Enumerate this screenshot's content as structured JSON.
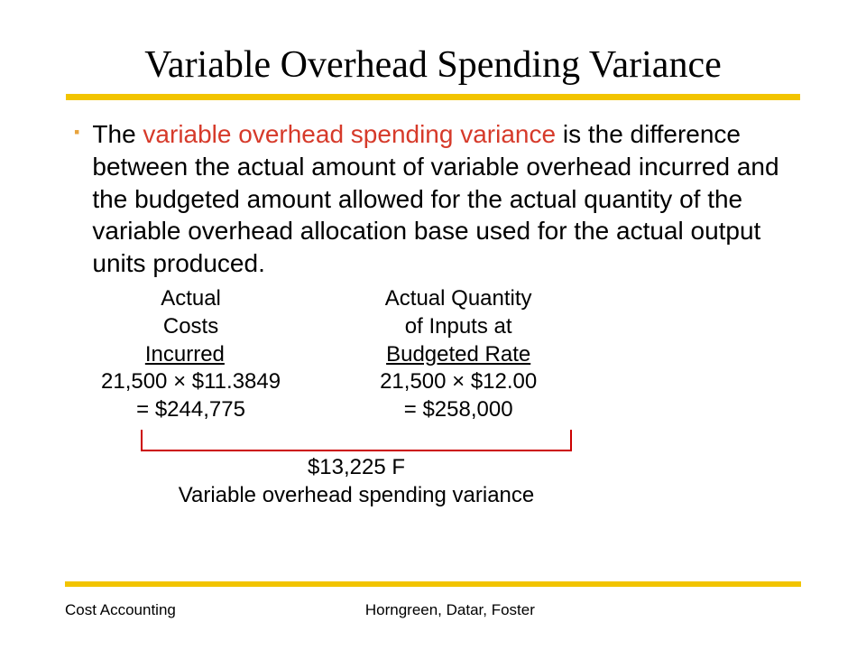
{
  "colors": {
    "accent_yellow": "#f2c400",
    "highlight_red": "#d63a2a",
    "bullet_orange": "#e8a33d",
    "bracket_red": "#cc0000",
    "text": "#000000"
  },
  "title": "Variable Overhead Spending Variance",
  "bullet": {
    "prefix": "The ",
    "highlight": "variable overhead spending variance",
    "rest": " is  the difference between the actual amount of variable overhead incurred and the budgeted amount allowed for the actual quantity of the variable overhead allocation base used for the actual output units produced."
  },
  "calc": {
    "left": {
      "h1": "Actual",
      "h2": "Costs",
      "h3": "Incurred",
      "expr": "21,500 × $11.3849",
      "result": "= $244,775"
    },
    "right": {
      "h1": "Actual Quantity",
      "h2": "of Inputs at",
      "h3": "Budgeted Rate",
      "expr": "21,500 × $12.00",
      "result": "= $258,000"
    }
  },
  "variance": {
    "amount": "$13,225 F",
    "label": "Variable overhead spending variance"
  },
  "footer": {
    "left": "Cost Accounting",
    "right": "Horngreen, Datar, Foster"
  },
  "layout": {
    "title_rule_width": 814,
    "title_fontsize": 42,
    "body_fontsize": 28,
    "calc_fontsize": 24
  }
}
